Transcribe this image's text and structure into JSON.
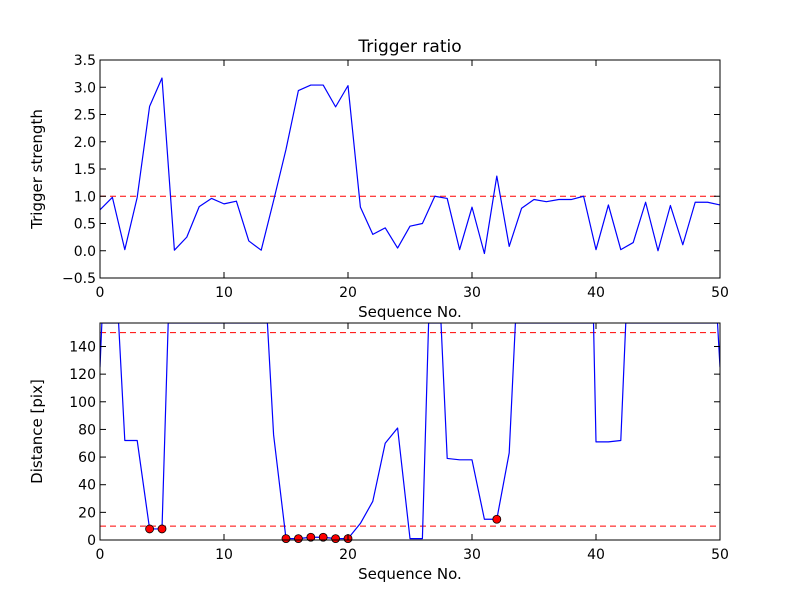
{
  "chart_data": [
    {
      "type": "line",
      "title": "Trigger ratio",
      "xlabel": "Sequence No.",
      "ylabel": "Trigger strength",
      "xlim": [
        0,
        50
      ],
      "ylim": [
        -0.5,
        3.5
      ],
      "xticks": [
        0,
        10,
        20,
        30,
        40,
        50
      ],
      "yticks": [
        -0.5,
        0.0,
        0.5,
        1.0,
        1.5,
        2.0,
        2.5,
        3.0,
        3.5
      ],
      "xtick_labels": [
        "0",
        "10",
        "20",
        "30",
        "40",
        "50"
      ],
      "ytick_labels": [
        "−0.5",
        "0.0",
        "0.5",
        "1.0",
        "1.5",
        "2.0",
        "2.5",
        "3.0",
        "3.5"
      ],
      "grid": false,
      "series": [
        {
          "color": "#0000ff",
          "x": [
            0,
            1,
            2,
            3,
            4,
            5,
            6,
            7,
            8,
            9,
            10,
            11,
            12,
            13,
            14,
            15,
            16,
            17,
            18,
            19,
            20,
            21,
            22,
            23,
            24,
            25,
            26,
            27,
            28,
            29,
            30,
            31,
            32,
            33,
            34,
            35,
            36,
            37,
            38,
            39,
            40,
            41,
            42,
            43,
            44,
            45,
            46,
            47,
            48,
            49,
            50
          ],
          "y": [
            0.75,
            0.98,
            0.02,
            0.98,
            2.65,
            3.17,
            0.01,
            0.25,
            0.81,
            0.96,
            0.86,
            0.91,
            0.18,
            0.01,
            0.92,
            1.86,
            2.94,
            3.04,
            3.04,
            2.64,
            3.03,
            0.8,
            0.3,
            0.42,
            0.05,
            0.45,
            0.5,
            1.0,
            0.96,
            0.02,
            0.8,
            -0.05,
            1.37,
            0.08,
            0.78,
            0.94,
            0.9,
            0.94,
            0.94,
            1.0,
            0.02,
            0.84,
            0.02,
            0.15,
            0.89,
            0.0,
            0.83,
            0.11,
            0.89,
            0.89,
            0.84
          ]
        }
      ],
      "reference_lines": [
        {
          "y": 1.0,
          "color": "#ff0000",
          "style": "dashed"
        }
      ]
    },
    {
      "type": "line",
      "title": "",
      "xlabel": "Sequence No.",
      "ylabel": "Distance [pix]",
      "xlim": [
        0,
        50
      ],
      "ylim": [
        0,
        157
      ],
      "xticks": [
        0,
        10,
        20,
        30,
        40,
        50
      ],
      "yticks": [
        0,
        20,
        40,
        60,
        80,
        100,
        120,
        140
      ],
      "xtick_labels": [
        "0",
        "10",
        "20",
        "30",
        "40",
        "50"
      ],
      "ytick_labels": [
        "0",
        "20",
        "40",
        "60",
        "80",
        "100",
        "120",
        "140"
      ],
      "grid": false,
      "series": [
        {
          "color": "#0000ff",
          "x": [
            0,
            0.15,
            1.5,
            2,
            3,
            4,
            5,
            5.5,
            13.5,
            14,
            15,
            16,
            17,
            18,
            19,
            20,
            21,
            22,
            23,
            24,
            25,
            26,
            26.5,
            27.5,
            28,
            29,
            30,
            31,
            32,
            33,
            33.5,
            39.8,
            40,
            41,
            42,
            42.4,
            49.8,
            50
          ],
          "y": [
            125,
            157,
            157,
            72,
            72,
            8,
            8,
            157,
            157,
            76,
            1,
            1,
            2,
            2,
            1,
            1,
            12,
            28,
            70,
            81,
            1,
            1,
            157,
            157,
            59,
            58,
            58,
            15,
            15,
            63,
            157,
            157,
            71,
            71,
            72,
            157,
            157,
            125
          ]
        }
      ],
      "markers": {
        "color": "#ff0000",
        "x": [
          4,
          5,
          15,
          16,
          17,
          18,
          19,
          20,
          32
        ],
        "y": [
          8,
          8,
          1,
          1,
          2,
          2,
          1,
          1,
          15
        ]
      },
      "reference_lines": [
        {
          "y": 150,
          "color": "#ff0000",
          "style": "dashed"
        },
        {
          "y": 10,
          "color": "#ff0000",
          "style": "dashed"
        }
      ]
    }
  ]
}
